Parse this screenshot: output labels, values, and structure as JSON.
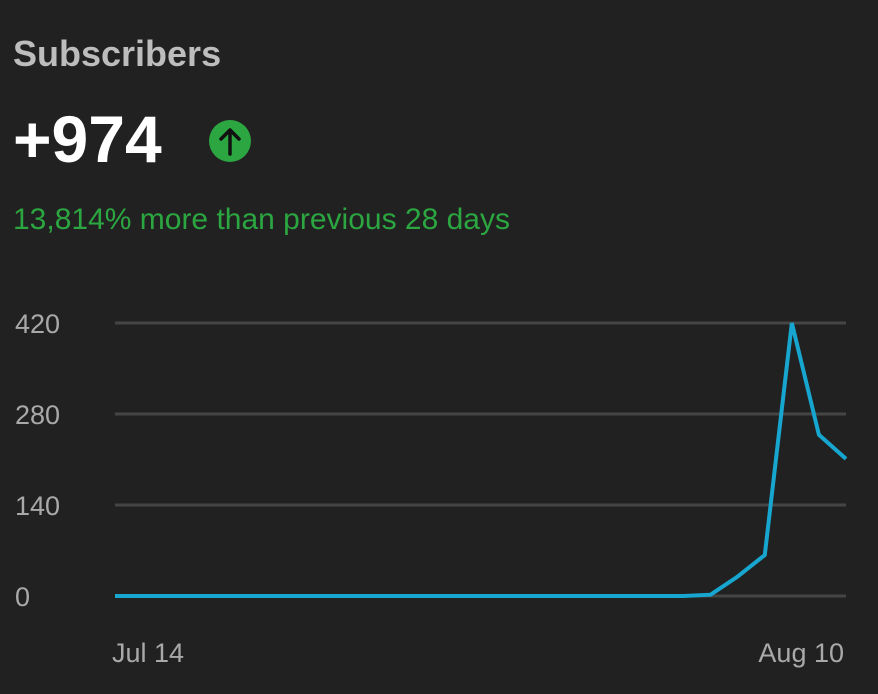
{
  "chart_data": {
    "type": "line",
    "title": "Subscribers",
    "headline": "+974",
    "subtitle": "13,814% more than previous 28 days",
    "categories": [
      "Jul 14",
      null,
      null,
      null,
      null,
      null,
      null,
      null,
      null,
      null,
      null,
      null,
      null,
      null,
      null,
      null,
      null,
      null,
      null,
      null,
      null,
      null,
      null,
      null,
      null,
      null,
      null,
      "Aug 10"
    ],
    "series": [
      {
        "name": "Subscribers",
        "color": "#17a6cf",
        "values": [
          0,
          0,
          0,
          0,
          0,
          0,
          0,
          0,
          0,
          0,
          0,
          0,
          0,
          0,
          0,
          0,
          0,
          0,
          0,
          0,
          0,
          0,
          2,
          30,
          63,
          420,
          248,
          211
        ]
      }
    ],
    "ylim": [
      0,
      420
    ],
    "yticks": [
      0,
      140,
      280,
      420
    ],
    "grid": true
  }
}
